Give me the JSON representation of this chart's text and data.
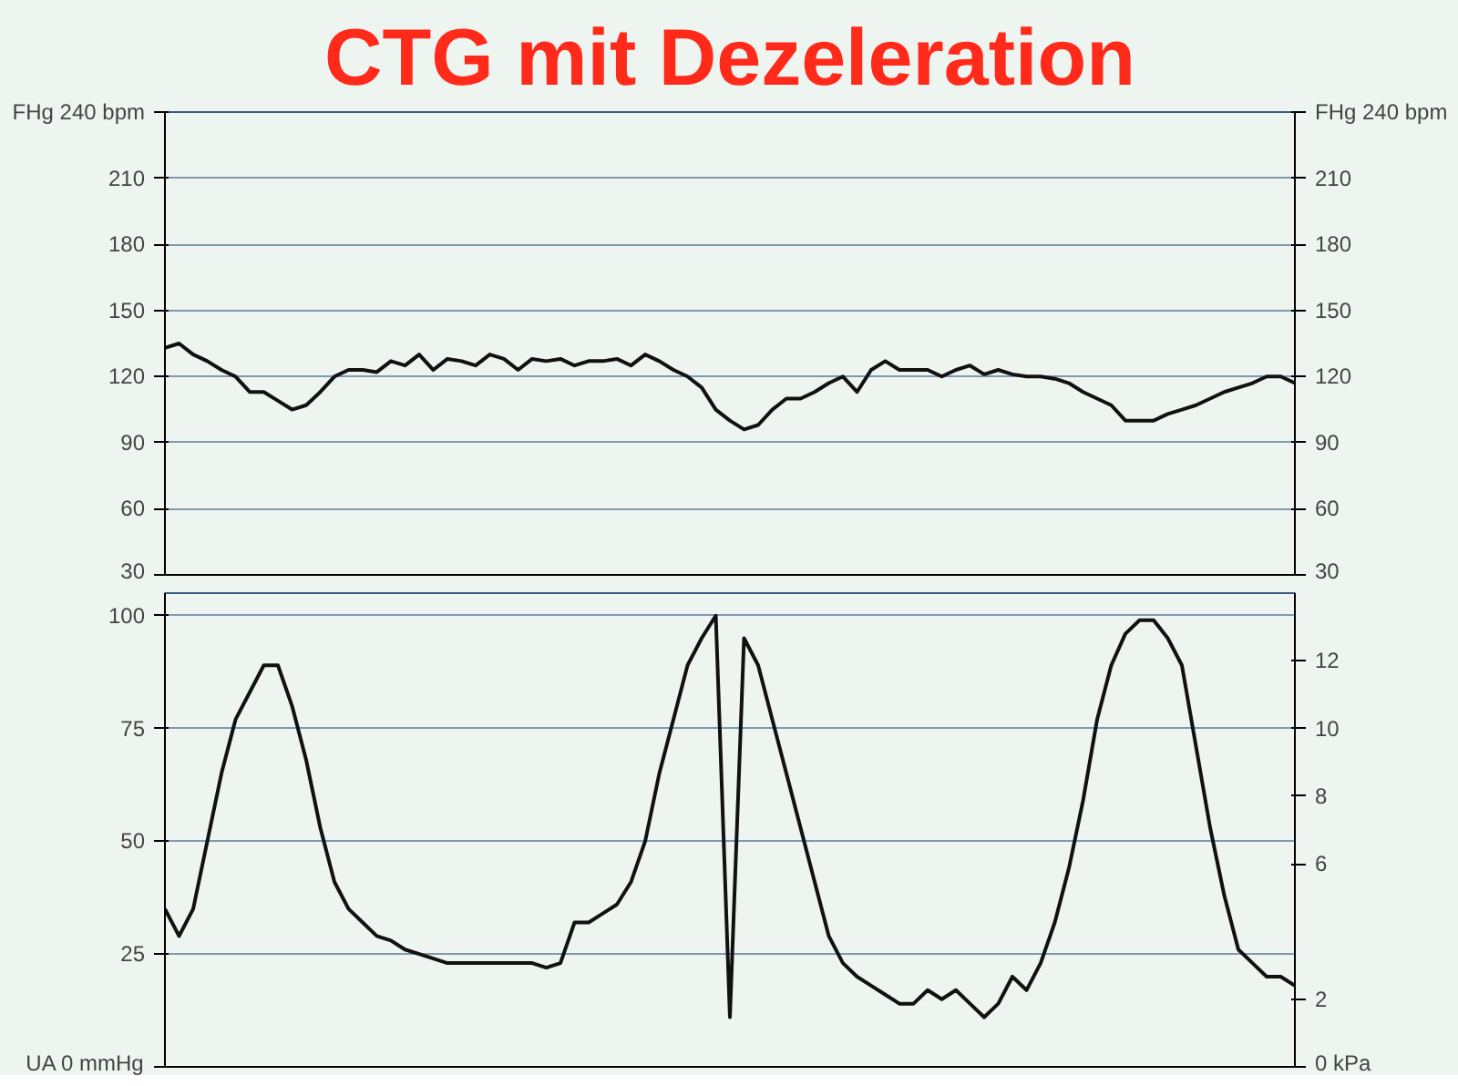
{
  "chart_data": [
    {
      "type": "line",
      "title": "CTG mit Dezeleration",
      "categories": [
        null,
        null,
        null,
        null,
        null,
        null,
        null,
        null,
        null,
        null,
        null,
        null,
        null,
        null,
        null,
        null,
        null,
        null,
        null,
        null,
        null,
        null,
        null,
        null,
        null,
        null,
        null,
        null,
        null,
        null,
        null,
        null,
        null,
        null,
        null,
        null,
        null,
        null,
        null,
        null,
        null,
        null,
        null,
        null,
        null,
        null,
        null,
        null,
        null,
        null,
        null,
        null,
        null,
        null,
        null,
        null,
        null,
        null,
        null,
        null,
        null,
        null,
        null,
        null,
        null,
        null,
        null,
        null,
        null,
        null,
        null,
        null,
        null,
        null,
        null,
        null,
        null,
        null,
        null,
        null,
        null
      ],
      "series": [
        {
          "color": "#111111",
          "values": [
            133,
            135,
            130,
            127,
            123,
            120,
            113,
            113,
            109,
            105,
            107,
            113,
            120,
            123,
            123,
            122,
            127,
            125,
            130,
            123,
            128,
            127,
            125,
            130,
            128,
            123,
            128,
            127,
            128,
            125,
            127,
            127,
            128,
            125,
            130,
            127,
            123,
            120,
            115,
            105,
            100,
            96,
            98,
            105,
            110,
            110,
            113,
            117,
            120,
            113,
            123,
            127,
            123,
            123,
            123,
            120,
            123,
            125,
            121,
            123,
            121,
            120,
            120,
            119,
            117,
            113,
            110,
            107,
            100,
            100,
            100,
            103,
            105,
            107,
            110,
            113,
            115,
            117,
            120,
            120,
            117
          ]
        }
      ],
      "ylim": [
        30,
        240
      ],
      "yticks": [
        30,
        60,
        90,
        120,
        150,
        180,
        210,
        {
          "value": 240,
          "label": "FHg 240 bpm"
        }
      ],
      "y2lim": [
        30,
        240
      ],
      "y2ticks": [
        30,
        60,
        90,
        120,
        150,
        180,
        210,
        {
          "value": 240,
          "label": "FHg 240 bpm"
        }
      ],
      "grid": true,
      "line_style": "solid"
    },
    {
      "type": "line",
      "categories": [
        null,
        null,
        null,
        null,
        null,
        null,
        null,
        null,
        null,
        null,
        null,
        null,
        null,
        null,
        null,
        null,
        null,
        null,
        null,
        null,
        null,
        null,
        null,
        null,
        null,
        null,
        null,
        null,
        null,
        null,
        null,
        null,
        null,
        null,
        null,
        null,
        null,
        null,
        null,
        null,
        null,
        null,
        null,
        null,
        null,
        null,
        null,
        null,
        null,
        null,
        null,
        null,
        null,
        null,
        null,
        null,
        null,
        null,
        null,
        null,
        null,
        null,
        null,
        null,
        null,
        null,
        null,
        null,
        null,
        null,
        null,
        null,
        null,
        null,
        null,
        null,
        null,
        null,
        null,
        null,
        null
      ],
      "series": [
        {
          "color": "#111111",
          "values": [
            35,
            29,
            35,
            50,
            65,
            77,
            83,
            89,
            89,
            80,
            68,
            53,
            41,
            35,
            32,
            29,
            28,
            26,
            25,
            24,
            23,
            23,
            23,
            23,
            23,
            23,
            23,
            22,
            23,
            32,
            32,
            34,
            36,
            41,
            50,
            65,
            77,
            89,
            95,
            100,
            11,
            95,
            89,
            77,
            65,
            53,
            41,
            29,
            23,
            20,
            18,
            16,
            14,
            14,
            17,
            15,
            17,
            14,
            11,
            14,
            20,
            17,
            23,
            32,
            44,
            59,
            77,
            89,
            96,
            99,
            99,
            95,
            89,
            71,
            53,
            38,
            26,
            23,
            20,
            20,
            18
          ]
        }
      ],
      "ylim": [
        0,
        105
      ],
      "yticks": [
        {
          "value": 0,
          "label": "UA 0 mmHg"
        },
        25,
        50,
        75,
        100
      ],
      "y2lim": [
        0,
        14
      ],
      "y2ticks": [
        {
          "value": 0,
          "label": "0 kPa"
        },
        2,
        6,
        8,
        10,
        12
      ],
      "grid": true,
      "line_style": "solid"
    }
  ]
}
